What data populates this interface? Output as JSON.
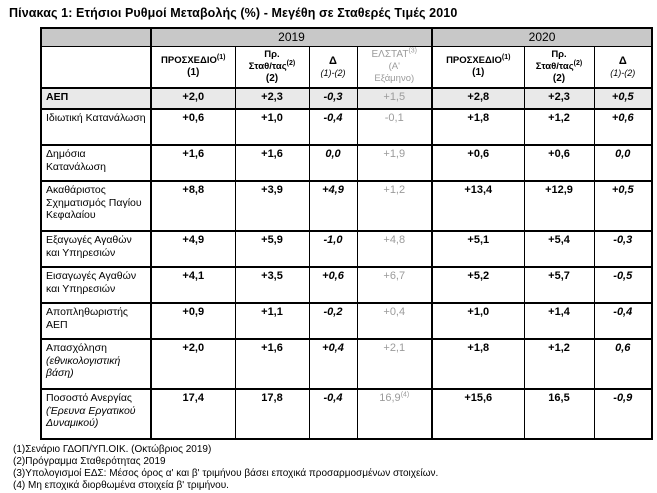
{
  "title": "Πίνακας 1: Ετήσιοι Ρυθμοί Μεταβολής (%) - Μεγέθη σε Σταθερές Τιμές 2010",
  "colors": {
    "year_header_bg": "#c8c8c8",
    "aep_row_bg": "#e9e9e9",
    "muted_text": "#9b9b9b",
    "border": "#000000"
  },
  "table": {
    "year_groups": [
      {
        "label": "2019",
        "colspan": 4
      },
      {
        "label": "2020",
        "colspan": 3
      }
    ],
    "columns": [
      {
        "name": "ΠΡΟΣΧΕΔΙΟ",
        "sup": "(1)",
        "code": "(1)"
      },
      {
        "pre": "Πρ.",
        "name": "Σταθ/τας",
        "sup": "(2)",
        "code": "(2)"
      },
      {
        "name": "Δ",
        "code": "(1)-(2)"
      },
      {
        "name": "ΕΛΣΤΑΤ",
        "sup": "(3)",
        "sub1": "(Α'",
        "sub2": "Εξάμηνο)"
      },
      {
        "name": "ΠΡΟΣΧΕΔΙΟ",
        "sup": "(1)",
        "code": "(1)"
      },
      {
        "pre": "Πρ.",
        "name": "Σταθ/τας",
        "sup": "(2)",
        "code": "(2)"
      },
      {
        "name": "Δ",
        "code": "(1)-(2)"
      }
    ],
    "rows": [
      {
        "label": "ΑΕΠ",
        "emphasis": true,
        "values": [
          "+2,0",
          "+2,3",
          "-0,3",
          "+1,5",
          "+2,8",
          "+2,3",
          "+0,5"
        ]
      },
      {
        "label": "Ιδιωτική Κατανάλωση",
        "values": [
          "+0,6",
          "+1,0",
          "-0,4",
          "-0,1",
          "+1,8",
          "+1,2",
          "+0,6"
        ]
      },
      {
        "label": "Δημόσια Κατανάλωση",
        "values": [
          "+1,6",
          "+1,6",
          "0,0",
          "+1,9",
          "+0,6",
          "+0,6",
          "0,0"
        ]
      },
      {
        "label": "Ακαθάριστος Σχηματισμός Παγίου Κεφαλαίου",
        "values": [
          "+8,8",
          "+3,9",
          "+4,9",
          "+1,2",
          "+13,4",
          "+12,9",
          "+0,5"
        ]
      },
      {
        "label": "Εξαγωγές Αγαθών και Υπηρεσιών",
        "values": [
          "+4,9",
          "+5,9",
          "-1,0",
          "+4,8",
          "+5,1",
          "+5,4",
          "-0,3"
        ]
      },
      {
        "label": "Εισαγωγές Αγαθών και Υπηρεσιών",
        "values": [
          "+4,1",
          "+3,5",
          "+0,6",
          "+6,7",
          "+5,2",
          "+5,7",
          "-0,5"
        ]
      },
      {
        "label": "Αποπληθωριστής ΑΕΠ",
        "values": [
          "+0,9",
          "+1,1",
          "-0,2",
          "+0,4",
          "+1,0",
          "+1,4",
          "-0,4"
        ]
      },
      {
        "label": "Απασχόληση",
        "note": "(εθνικολογιστική βάση)",
        "values": [
          "+2,0",
          "+1,6",
          "+0,4",
          "+2,1",
          "+1,8",
          "+1,2",
          "0,6"
        ]
      },
      {
        "label": "Ποσοστό Ανεργίας",
        "note": "(Έρευνα Εργατικού Δυναμικού)",
        "values": [
          "17,4",
          "17,8",
          "-0,4",
          {
            "v": "16,9",
            "sup": "(4)"
          },
          "+15,6",
          "16,5",
          "-0,9"
        ]
      }
    ]
  },
  "footnotes": [
    "(1)Σενάριο ΓΔΟΠ/ΥΠ.ΟΙΚ. (Οκτώβριος 2019)",
    "(2)Πρόγραμμα Σταθερότητας 2019",
    "(3)Υπολογισμοί ΕΔΣ: Μέσος όρος α' και β' τριμήνου βάσει εποχικά προσαρμοσμένων στοιχείων.",
    "(4) Μη εποχικά διορθωμένα στοιχεία β' τριμήνου."
  ]
}
